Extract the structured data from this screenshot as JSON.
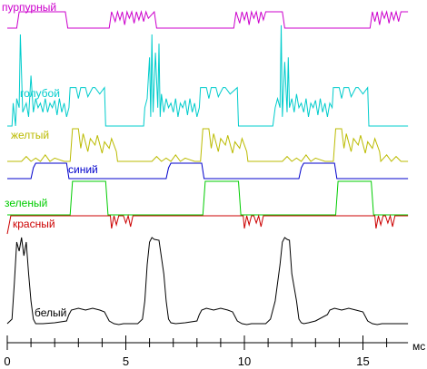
{
  "chart_data": {
    "type": "line",
    "title": "",
    "xlabel": "мс",
    "ylabel": "",
    "x_unit": "мс",
    "xlim": [
      0,
      16.9
    ],
    "x_ticks": [
      0,
      5,
      10,
      15
    ],
    "x_tick_labels": [
      "0",
      "5",
      "10",
      "15"
    ],
    "grid": false,
    "legend": "none",
    "series": [
      {
        "name": "пурпурный",
        "color": "#cc00cc",
        "high_intervals": [
          [
            0.45,
            2.5
          ],
          [
            4.4,
            6.2
          ],
          [
            9.6,
            11.6
          ],
          [
            15.35,
            16.9
          ]
        ],
        "x": [
          0,
          0.4,
          0.5,
          2.45,
          2.55,
          4.3,
          4.4,
          4.55,
          4.65,
          4.75,
          4.85,
          4.95,
          5.05,
          5.15,
          5.25,
          5.35,
          5.45,
          5.55,
          5.65,
          5.75,
          5.85,
          5.95,
          6.2,
          6.3,
          9.55,
          9.65,
          9.8,
          9.9,
          10.0,
          10.1,
          10.2,
          10.3,
          10.4,
          10.5,
          10.6,
          10.7,
          10.8,
          10.9,
          11.6,
          11.7,
          15.3,
          15.4,
          15.5,
          15.6,
          15.7,
          15.8,
          15.9,
          16.0,
          16.1,
          16.2,
          16.3,
          16.4,
          16.5,
          16.6,
          16.9
        ],
        "y": [
          0,
          0,
          1,
          1,
          0,
          0,
          1,
          0.4,
          1,
          0.5,
          1,
          0.2,
          1,
          0.6,
          1,
          0.3,
          1,
          0.5,
          1,
          0.4,
          1,
          0.6,
          1,
          0,
          0,
          1,
          0.3,
          1,
          0.5,
          1,
          0.2,
          1,
          0.6,
          1,
          0.3,
          1,
          0.5,
          1,
          1,
          0,
          0,
          1,
          0.4,
          1,
          0.2,
          1,
          0.6,
          1,
          0.3,
          1,
          0.5,
          1,
          0.4,
          1,
          1
        ]
      },
      {
        "name": "голубой",
        "color": "#00cccc",
        "high_intervals": [
          [
            2.6,
            4.1
          ],
          [
            8.1,
            9.7
          ],
          [
            13.7,
            15.2
          ]
        ],
        "x": [
          0,
          0.2,
          0.25,
          0.35,
          0.4,
          0.5,
          0.55,
          0.65,
          0.8,
          0.9,
          1.0,
          1.1,
          1.2,
          1.3,
          1.4,
          1.5,
          1.6,
          1.7,
          1.8,
          1.9,
          2.0,
          2.1,
          2.2,
          2.3,
          2.4,
          2.5,
          2.6,
          2.65,
          2.9,
          3.0,
          3.1,
          3.3,
          3.4,
          3.6,
          3.7,
          3.9,
          4.1,
          4.15,
          5.75,
          5.8,
          5.9,
          6.0,
          6.05,
          6.1,
          6.15,
          6.25,
          6.35,
          6.4,
          6.45,
          6.5,
          6.6,
          6.7,
          6.8,
          6.9,
          7.0,
          7.1,
          7.2,
          7.3,
          7.4,
          7.5,
          7.6,
          7.7,
          7.8,
          7.9,
          8.0,
          8.1,
          8.15,
          8.4,
          8.5,
          8.6,
          8.8,
          8.9,
          9.1,
          9.2,
          9.4,
          9.7,
          9.75,
          11.2,
          11.3,
          11.4,
          11.5,
          11.55,
          11.6,
          11.7,
          11.8,
          11.85,
          11.9,
          12.0,
          12.1,
          12.2,
          12.3,
          12.4,
          12.5,
          12.6,
          12.7,
          12.8,
          12.9,
          13.0,
          13.1,
          13.2,
          13.3,
          13.4,
          13.5,
          13.6,
          13.7,
          13.75,
          14.0,
          14.1,
          14.2,
          14.4,
          14.5,
          14.7,
          14.8,
          15.0,
          15.2,
          15.25,
          16.9
        ],
        "y": [
          0,
          0,
          0.25,
          0,
          0.3,
          0.2,
          1.0,
          0.15,
          0.25,
          0.1,
          0.55,
          0.15,
          0.3,
          0.2,
          0.25,
          0.15,
          0.3,
          0.15,
          0.25,
          0.2,
          0.28,
          0.12,
          0.3,
          0.15,
          0.25,
          0.1,
          0.2,
          0.42,
          0.42,
          0.3,
          0.42,
          0.42,
          0.32,
          0.42,
          0.42,
          0.35,
          0.42,
          0,
          0,
          0.2,
          0.3,
          0.75,
          0.1,
          1.0,
          0.15,
          0.8,
          0.2,
          0.9,
          0.1,
          0.35,
          0.15,
          0.3,
          0.2,
          0.25,
          0.15,
          0.3,
          0.1,
          0.25,
          0.2,
          0.28,
          0.12,
          0.3,
          0.15,
          0.25,
          0.1,
          0.2,
          0.42,
          0.42,
          0.3,
          0.42,
          0.42,
          0.32,
          0.42,
          0.42,
          0.35,
          0.42,
          0,
          0,
          0.2,
          0.3,
          0.2,
          1.1,
          0.1,
          0.7,
          0.15,
          0.75,
          0.2,
          0.3,
          0.15,
          0.35,
          0.2,
          0.25,
          0.15,
          0.3,
          0.1,
          0.25,
          0.2,
          0.28,
          0.12,
          0.3,
          0.15,
          0.25,
          0.1,
          0.25,
          0.2,
          0.42,
          0.42,
          0.3,
          0.42,
          0.42,
          0.32,
          0.42,
          0.42,
          0.35,
          0.42,
          0,
          0
        ]
      },
      {
        "name": "желтый",
        "color": "#bbbb00",
        "high_intervals": [
          [
            2.7,
            4.6
          ],
          [
            8.2,
            10.1
          ],
          [
            13.8,
            15.7
          ]
        ],
        "x": [
          0,
          0.6,
          0.8,
          1.0,
          1.2,
          1.4,
          1.6,
          1.8,
          2.0,
          2.2,
          2.4,
          2.65,
          2.75,
          3.0,
          3.1,
          3.2,
          3.4,
          3.5,
          3.7,
          3.8,
          4.0,
          4.1,
          4.3,
          4.4,
          4.6,
          4.65,
          6.1,
          6.3,
          6.5,
          6.7,
          6.9,
          7.1,
          7.3,
          7.5,
          7.7,
          7.9,
          8.15,
          8.25,
          8.5,
          8.6,
          8.7,
          8.9,
          9.0,
          9.2,
          9.3,
          9.5,
          9.6,
          9.8,
          9.9,
          10.1,
          10.15,
          11.6,
          11.8,
          12.0,
          12.2,
          12.4,
          12.6,
          12.8,
          13.0,
          13.2,
          13.4,
          13.75,
          13.85,
          14.1,
          14.2,
          14.3,
          14.5,
          14.6,
          14.8,
          14.9,
          15.1,
          15.2,
          15.4,
          15.5,
          15.7,
          15.75,
          16.0,
          16.2,
          16.4,
          16.6,
          16.9
        ],
        "y": [
          0,
          0,
          0.15,
          0,
          0.1,
          0,
          0.2,
          0,
          0.1,
          0.05,
          0,
          0,
          1,
          1,
          0.4,
          0.85,
          0.3,
          0.7,
          0.5,
          0.8,
          0.25,
          0.6,
          0.4,
          0.7,
          0.3,
          0,
          0,
          0.15,
          0,
          0.1,
          0,
          0.2,
          0,
          0.1,
          0.05,
          0,
          0,
          1,
          1,
          0.4,
          0.85,
          0.3,
          0.7,
          0.5,
          0.8,
          0.25,
          0.6,
          0.4,
          0.7,
          0.3,
          0,
          0,
          0.15,
          0,
          0.1,
          0,
          0.2,
          0,
          0.1,
          0.05,
          0,
          0,
          1,
          1,
          0.4,
          0.85,
          0.3,
          0.7,
          0.5,
          0.8,
          0.25,
          0.6,
          0.4,
          0.7,
          0.3,
          0,
          0.2,
          0,
          0.15,
          0,
          0
        ]
      },
      {
        "name": "синий",
        "color": "#0000cc",
        "high_intervals": [
          [
            1.1,
            2.5
          ],
          [
            6.8,
            8.2
          ],
          [
            12.4,
            13.8
          ]
        ],
        "x": [
          0,
          1.0,
          1.1,
          1.2,
          2.5,
          2.6,
          6.7,
          6.8,
          6.9,
          8.2,
          8.3,
          12.3,
          12.4,
          12.5,
          13.8,
          13.9,
          16.9
        ],
        "y": [
          0,
          0,
          0.7,
          1,
          1,
          0,
          0,
          0.7,
          1,
          1,
          0,
          0,
          0.7,
          1,
          1,
          0,
          0
        ]
      },
      {
        "name": "зеленый",
        "color": "#00cc00",
        "high_intervals": [
          [
            2.7,
            4.2
          ],
          [
            8.3,
            9.8
          ],
          [
            13.9,
            15.4
          ]
        ],
        "x": [
          0,
          2.65,
          2.75,
          4.15,
          4.25,
          8.25,
          8.35,
          9.75,
          9.85,
          13.85,
          13.95,
          15.35,
          15.45,
          16.9
        ],
        "y": [
          0,
          0,
          1,
          1,
          0,
          0,
          1,
          1,
          0,
          0,
          1,
          1,
          0,
          0
        ]
      },
      {
        "name": "красный",
        "color": "#cc0000",
        "high_intervals": [
          [
            0.15,
            4.35
          ],
          [
            5.6,
            9.95
          ],
          [
            11.2,
            15.5
          ]
        ],
        "x": [
          0,
          0.15,
          4.35,
          4.4,
          4.5,
          4.6,
          4.7,
          4.8,
          4.9,
          5.0,
          5.1,
          5.2,
          5.3,
          5.4,
          5.5,
          5.6,
          9.95,
          10.0,
          10.1,
          10.2,
          10.3,
          10.4,
          10.5,
          10.6,
          10.7,
          10.8,
          10.9,
          11.0,
          11.1,
          11.2,
          15.5,
          15.55,
          15.65,
          15.75,
          15.85,
          15.95,
          16.05,
          16.15,
          16.25,
          16.35,
          16.45,
          16.9
        ],
        "y": [
          0,
          1,
          1,
          0.3,
          1,
          0.5,
          1,
          1,
          1,
          0.6,
          1,
          0.4,
          1,
          1,
          1,
          1,
          1,
          0.3,
          1,
          0.5,
          1,
          1,
          0.6,
          1,
          0.4,
          1,
          1,
          1,
          1,
          1,
          1,
          0.3,
          1,
          0.5,
          1,
          1,
          0.6,
          1,
          0.4,
          1,
          1,
          1
        ]
      },
      {
        "name": "белый",
        "color": "#000000",
        "x": [
          0,
          0.2,
          0.3,
          0.4,
          0.5,
          0.6,
          0.7,
          0.8,
          0.9,
          1.0,
          1.1,
          1.2,
          1.5,
          2.0,
          2.5,
          2.6,
          2.7,
          3.0,
          3.3,
          3.6,
          3.9,
          4.1,
          4.3,
          4.5,
          4.7,
          4.9,
          5.2,
          5.5,
          5.7,
          5.8,
          5.9,
          6.0,
          6.1,
          6.2,
          6.4,
          6.6,
          6.7,
          6.8,
          6.9,
          7.1,
          7.5,
          8.0,
          8.1,
          8.2,
          8.4,
          8.7,
          9.0,
          9.3,
          9.5,
          9.7,
          9.9,
          10.1,
          10.3,
          10.6,
          10.9,
          11.1,
          11.3,
          11.5,
          11.6,
          11.7,
          11.8,
          11.9,
          12.0,
          12.2,
          12.3,
          12.4,
          12.5,
          12.7,
          13.0,
          13.5,
          13.6,
          13.8,
          14.1,
          14.4,
          14.7,
          15.0,
          15.2,
          15.4,
          15.6,
          15.8,
          16.0,
          16.3,
          16.6,
          16.9
        ],
        "y": [
          0.05,
          0.1,
          0.5,
          0.95,
          0.85,
          1.0,
          0.8,
          0.95,
          0.6,
          0.3,
          0.1,
          0.05,
          0.05,
          0.06,
          0.08,
          0.15,
          0.2,
          0.22,
          0.2,
          0.22,
          0.2,
          0.18,
          0.08,
          0.05,
          0.04,
          0.05,
          0.05,
          0.05,
          0.1,
          0.3,
          0.7,
          0.95,
          1.0,
          0.98,
          0.97,
          0.6,
          0.3,
          0.1,
          0.06,
          0.05,
          0.06,
          0.08,
          0.15,
          0.2,
          0.22,
          0.2,
          0.22,
          0.2,
          0.18,
          0.08,
          0.05,
          0.04,
          0.05,
          0.05,
          0.05,
          0.1,
          0.3,
          0.7,
          0.95,
          1.0,
          0.98,
          0.97,
          0.6,
          0.3,
          0.1,
          0.06,
          0.05,
          0.06,
          0.08,
          0.15,
          0.2,
          0.22,
          0.2,
          0.22,
          0.2,
          0.18,
          0.08,
          0.05,
          0.04,
          0.05,
          0.05,
          0.05,
          0.05,
          0.05
        ]
      }
    ]
  }
}
